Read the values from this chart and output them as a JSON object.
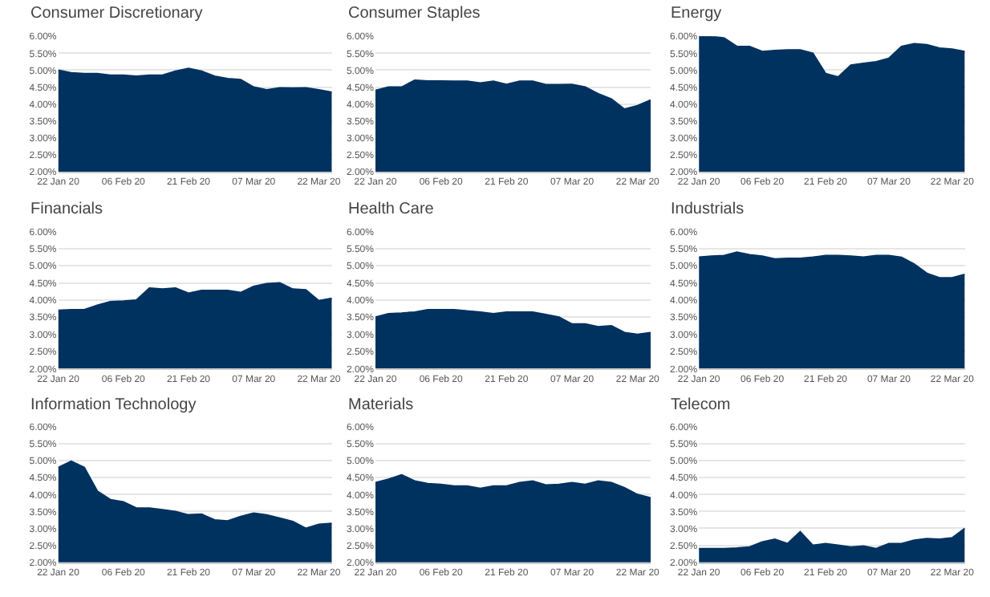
{
  "chart_data": [
    {
      "type": "area",
      "title": "Consumer Discretionary",
      "x": [
        "2020-01-22",
        "2020-01-25",
        "2020-01-28",
        "2020-01-31",
        "2020-02-03",
        "2020-02-06",
        "2020-02-09",
        "2020-02-12",
        "2020-02-15",
        "2020-02-18",
        "2020-02-21",
        "2020-02-24",
        "2020-02-27",
        "2020-03-01",
        "2020-03-04",
        "2020-03-07",
        "2020-03-10",
        "2020-03-13",
        "2020-03-16",
        "2020-03-19",
        "2020-03-22",
        "2020-03-25"
      ],
      "series": [
        {
          "color": "#003260",
          "values": [
            5.0,
            4.92,
            4.9,
            4.9,
            4.85,
            4.85,
            4.82,
            4.85,
            4.85,
            4.97,
            5.05,
            4.97,
            4.82,
            4.75,
            4.72,
            4.5,
            4.42,
            4.48,
            4.47,
            4.48,
            4.42,
            4.35
          ]
        }
      ],
      "xlim": [
        "2020-01-22",
        "2020-03-25"
      ],
      "xticks": [
        {
          "value": "2020-01-22",
          "label": "22 Jan 20"
        },
        {
          "value": "2020-02-06",
          "label": "06 Feb 20"
        },
        {
          "value": "2020-02-21",
          "label": "21 Feb 20"
        },
        {
          "value": "2020-03-07",
          "label": "07 Mar 20"
        },
        {
          "value": "2020-03-22",
          "label": "22 Mar 20"
        }
      ],
      "ylim": [
        2,
        6
      ],
      "yticks": [
        {
          "value": 2,
          "label": "2.00%"
        },
        {
          "value": 2.5,
          "label": "2.50%"
        },
        {
          "value": 3,
          "label": "3.00%"
        },
        {
          "value": 3.5,
          "label": "3.50%"
        },
        {
          "value": 4,
          "label": "4.00%"
        },
        {
          "value": 4.5,
          "label": "4.50%"
        },
        {
          "value": 5,
          "label": "5.00%"
        },
        {
          "value": 5.5,
          "label": "5.50%"
        },
        {
          "value": 6,
          "label": "6.00%"
        }
      ],
      "grid": "y"
    },
    {
      "type": "area",
      "title": "Consumer Staples",
      "x": [
        "2020-01-22",
        "2020-01-25",
        "2020-01-28",
        "2020-01-31",
        "2020-02-03",
        "2020-02-06",
        "2020-02-09",
        "2020-02-12",
        "2020-02-15",
        "2020-02-18",
        "2020-02-21",
        "2020-02-24",
        "2020-02-27",
        "2020-03-01",
        "2020-03-04",
        "2020-03-07",
        "2020-03-10",
        "2020-03-13",
        "2020-03-16",
        "2020-03-19",
        "2020-03-22",
        "2020-03-25"
      ],
      "series": [
        {
          "color": "#003260",
          "values": [
            4.4,
            4.5,
            4.5,
            4.7,
            4.68,
            4.68,
            4.67,
            4.67,
            4.62,
            4.67,
            4.58,
            4.67,
            4.67,
            4.57,
            4.57,
            4.58,
            4.5,
            4.3,
            4.15,
            3.85,
            3.95,
            4.12
          ]
        }
      ],
      "xlim": [
        "2020-01-22",
        "2020-03-25"
      ],
      "xticks": [
        {
          "value": "2020-01-22",
          "label": "22 Jan 20"
        },
        {
          "value": "2020-02-06",
          "label": "06 Feb 20"
        },
        {
          "value": "2020-02-21",
          "label": "21 Feb 20"
        },
        {
          "value": "2020-03-07",
          "label": "07 Mar 20"
        },
        {
          "value": "2020-03-22",
          "label": "22 Mar 20"
        }
      ],
      "ylim": [
        2,
        6
      ],
      "yticks": [
        {
          "value": 2,
          "label": "2.00%"
        },
        {
          "value": 2.5,
          "label": "2.50%"
        },
        {
          "value": 3,
          "label": "3.00%"
        },
        {
          "value": 3.5,
          "label": "3.50%"
        },
        {
          "value": 4,
          "label": "4.00%"
        },
        {
          "value": 4.5,
          "label": "4.50%"
        },
        {
          "value": 5,
          "label": "5.00%"
        },
        {
          "value": 5.5,
          "label": "5.50%"
        },
        {
          "value": 6,
          "label": "6.00%"
        }
      ],
      "grid": "y"
    },
    {
      "type": "area",
      "title": "Energy",
      "x": [
        "2020-01-22",
        "2020-01-25",
        "2020-01-28",
        "2020-01-31",
        "2020-02-03",
        "2020-02-06",
        "2020-02-09",
        "2020-02-12",
        "2020-02-15",
        "2020-02-18",
        "2020-02-21",
        "2020-02-24",
        "2020-02-27",
        "2020-03-01",
        "2020-03-04",
        "2020-03-07",
        "2020-03-10",
        "2020-03-13",
        "2020-03-16",
        "2020-03-19",
        "2020-03-22",
        "2020-03-25"
      ],
      "series": [
        {
          "color": "#003260",
          "values": [
            6.0,
            6.0,
            5.95,
            5.7,
            5.7,
            5.55,
            5.58,
            5.6,
            5.6,
            5.5,
            4.9,
            4.8,
            5.15,
            5.2,
            5.25,
            5.35,
            5.7,
            5.78,
            5.75,
            5.65,
            5.62,
            5.55
          ]
        }
      ],
      "xlim": [
        "2020-01-22",
        "2020-03-25"
      ],
      "xticks": [
        {
          "value": "2020-01-22",
          "label": "22 Jan 20"
        },
        {
          "value": "2020-02-06",
          "label": "06 Feb 20"
        },
        {
          "value": "2020-02-21",
          "label": "21 Feb 20"
        },
        {
          "value": "2020-03-07",
          "label": "07 Mar 20"
        },
        {
          "value": "2020-03-22",
          "label": "22 Mar 20"
        }
      ],
      "ylim": [
        2,
        6
      ],
      "yticks": [
        {
          "value": 2,
          "label": "2.00%"
        },
        {
          "value": 2.5,
          "label": "2.50%"
        },
        {
          "value": 3,
          "label": "3.00%"
        },
        {
          "value": 3.5,
          "label": "3.50%"
        },
        {
          "value": 4,
          "label": "4.00%"
        },
        {
          "value": 4.5,
          "label": "4.50%"
        },
        {
          "value": 5,
          "label": "5.00%"
        },
        {
          "value": 5.5,
          "label": "5.50%"
        },
        {
          "value": 6,
          "label": "6.00%"
        }
      ],
      "grid": "y"
    },
    {
      "type": "area",
      "title": "Financials",
      "x": [
        "2020-01-22",
        "2020-01-25",
        "2020-01-28",
        "2020-01-31",
        "2020-02-03",
        "2020-02-06",
        "2020-02-09",
        "2020-02-12",
        "2020-02-15",
        "2020-02-18",
        "2020-02-21",
        "2020-02-24",
        "2020-02-27",
        "2020-03-01",
        "2020-03-04",
        "2020-03-07",
        "2020-03-10",
        "2020-03-13",
        "2020-03-16",
        "2020-03-19",
        "2020-03-22",
        "2020-03-25"
      ],
      "series": [
        {
          "color": "#003260",
          "values": [
            3.7,
            3.72,
            3.72,
            3.85,
            3.95,
            3.97,
            4.0,
            4.35,
            4.32,
            4.35,
            4.2,
            4.28,
            4.28,
            4.28,
            4.22,
            4.4,
            4.48,
            4.5,
            4.32,
            4.3,
            3.98,
            4.05
          ]
        }
      ],
      "xlim": [
        "2020-01-22",
        "2020-03-25"
      ],
      "xticks": [
        {
          "value": "2020-01-22",
          "label": "22 Jan 20"
        },
        {
          "value": "2020-02-06",
          "label": "06 Feb 20"
        },
        {
          "value": "2020-02-21",
          "label": "21 Feb 20"
        },
        {
          "value": "2020-03-07",
          "label": "07 Mar 20"
        },
        {
          "value": "2020-03-22",
          "label": "22 Mar 20"
        }
      ],
      "ylim": [
        2,
        6
      ],
      "yticks": [
        {
          "value": 2,
          "label": "2.00%"
        },
        {
          "value": 2.5,
          "label": "2.50%"
        },
        {
          "value": 3,
          "label": "3.00%"
        },
        {
          "value": 3.5,
          "label": "3.50%"
        },
        {
          "value": 4,
          "label": "4.00%"
        },
        {
          "value": 4.5,
          "label": "4.50%"
        },
        {
          "value": 5,
          "label": "5.00%"
        },
        {
          "value": 5.5,
          "label": "5.50%"
        },
        {
          "value": 6,
          "label": "6.00%"
        }
      ],
      "grid": "y"
    },
    {
      "type": "area",
      "title": "Health Care",
      "x": [
        "2020-01-22",
        "2020-01-25",
        "2020-01-28",
        "2020-01-31",
        "2020-02-03",
        "2020-02-06",
        "2020-02-09",
        "2020-02-12",
        "2020-02-15",
        "2020-02-18",
        "2020-02-21",
        "2020-02-24",
        "2020-02-27",
        "2020-03-01",
        "2020-03-04",
        "2020-03-07",
        "2020-03-10",
        "2020-03-13",
        "2020-03-16",
        "2020-03-19",
        "2020-03-22",
        "2020-03-25"
      ],
      "series": [
        {
          "color": "#003260",
          "values": [
            3.5,
            3.6,
            3.62,
            3.65,
            3.72,
            3.72,
            3.72,
            3.68,
            3.65,
            3.6,
            3.65,
            3.65,
            3.65,
            3.58,
            3.5,
            3.3,
            3.3,
            3.22,
            3.25,
            3.05,
            3.0,
            3.05
          ]
        }
      ],
      "xlim": [
        "2020-01-22",
        "2020-03-25"
      ],
      "xticks": [
        {
          "value": "2020-01-22",
          "label": "22 Jan 20"
        },
        {
          "value": "2020-02-06",
          "label": "06 Feb 20"
        },
        {
          "value": "2020-02-21",
          "label": "21 Feb 20"
        },
        {
          "value": "2020-03-07",
          "label": "07 Mar 20"
        },
        {
          "value": "2020-03-22",
          "label": "22 Mar 20"
        }
      ],
      "ylim": [
        2,
        6
      ],
      "yticks": [
        {
          "value": 2,
          "label": "2.00%"
        },
        {
          "value": 2.5,
          "label": "2.50%"
        },
        {
          "value": 3,
          "label": "3.00%"
        },
        {
          "value": 3.5,
          "label": "3.50%"
        },
        {
          "value": 4,
          "label": "4.00%"
        },
        {
          "value": 4.5,
          "label": "4.50%"
        },
        {
          "value": 5,
          "label": "5.00%"
        },
        {
          "value": 5.5,
          "label": "5.50%"
        },
        {
          "value": 6,
          "label": "6.00%"
        }
      ],
      "grid": "y"
    },
    {
      "type": "area",
      "title": "Industrials",
      "x": [
        "2020-01-22",
        "2020-01-25",
        "2020-01-28",
        "2020-01-31",
        "2020-02-03",
        "2020-02-06",
        "2020-02-09",
        "2020-02-12",
        "2020-02-15",
        "2020-02-18",
        "2020-02-21",
        "2020-02-24",
        "2020-02-27",
        "2020-03-01",
        "2020-03-04",
        "2020-03-07",
        "2020-03-10",
        "2020-03-13",
        "2020-03-16",
        "2020-03-19",
        "2020-03-22",
        "2020-03-25"
      ],
      "series": [
        {
          "color": "#003260",
          "values": [
            5.25,
            5.28,
            5.3,
            5.4,
            5.32,
            5.28,
            5.2,
            5.22,
            5.22,
            5.25,
            5.3,
            5.3,
            5.28,
            5.25,
            5.3,
            5.3,
            5.25,
            5.05,
            4.78,
            4.65,
            4.65,
            4.75
          ]
        }
      ],
      "xlim": [
        "2020-01-22",
        "2020-03-25"
      ],
      "xticks": [
        {
          "value": "2020-01-22",
          "label": "22 Jan 20"
        },
        {
          "value": "2020-02-06",
          "label": "06 Feb 20"
        },
        {
          "value": "2020-02-21",
          "label": "21 Feb 20"
        },
        {
          "value": "2020-03-07",
          "label": "07 Mar 20"
        },
        {
          "value": "2020-03-22",
          "label": "22 Mar 20"
        }
      ],
      "ylim": [
        2,
        6
      ],
      "yticks": [
        {
          "value": 2,
          "label": "2.00%"
        },
        {
          "value": 2.5,
          "label": "2.50%"
        },
        {
          "value": 3,
          "label": "3.00%"
        },
        {
          "value": 3.5,
          "label": "3.50%"
        },
        {
          "value": 4,
          "label": "4.00%"
        },
        {
          "value": 4.5,
          "label": "4.50%"
        },
        {
          "value": 5,
          "label": "5.00%"
        },
        {
          "value": 5.5,
          "label": "5.50%"
        },
        {
          "value": 6,
          "label": "6.00%"
        }
      ],
      "grid": "y"
    },
    {
      "type": "area",
      "title": "Information Technology",
      "x": [
        "2020-01-22",
        "2020-01-25",
        "2020-01-28",
        "2020-01-31",
        "2020-02-03",
        "2020-02-06",
        "2020-02-09",
        "2020-02-12",
        "2020-02-15",
        "2020-02-18",
        "2020-02-21",
        "2020-02-24",
        "2020-02-27",
        "2020-03-01",
        "2020-03-04",
        "2020-03-07",
        "2020-03-10",
        "2020-03-13",
        "2020-03-16",
        "2020-03-19",
        "2020-03-22",
        "2020-03-25"
      ],
      "series": [
        {
          "color": "#003260",
          "values": [
            4.8,
            4.98,
            4.8,
            4.1,
            3.85,
            3.78,
            3.6,
            3.6,
            3.55,
            3.5,
            3.4,
            3.42,
            3.25,
            3.22,
            3.35,
            3.45,
            3.4,
            3.3,
            3.2,
            3.0,
            3.12,
            3.15
          ]
        }
      ],
      "xlim": [
        "2020-01-22",
        "2020-03-25"
      ],
      "xticks": [
        {
          "value": "2020-01-22",
          "label": "22 Jan 20"
        },
        {
          "value": "2020-02-06",
          "label": "06 Feb 20"
        },
        {
          "value": "2020-02-21",
          "label": "21 Feb 20"
        },
        {
          "value": "2020-03-07",
          "label": "07 Mar 20"
        },
        {
          "value": "2020-03-22",
          "label": "22 Mar 20"
        }
      ],
      "ylim": [
        2,
        6
      ],
      "yticks": [
        {
          "value": 2,
          "label": "2.00%"
        },
        {
          "value": 2.5,
          "label": "2.50%"
        },
        {
          "value": 3,
          "label": "3.00%"
        },
        {
          "value": 3.5,
          "label": "3.50%"
        },
        {
          "value": 4,
          "label": "4.00%"
        },
        {
          "value": 4.5,
          "label": "4.50%"
        },
        {
          "value": 5,
          "label": "5.00%"
        },
        {
          "value": 5.5,
          "label": "5.50%"
        },
        {
          "value": 6,
          "label": "6.00%"
        }
      ],
      "grid": "y"
    },
    {
      "type": "area",
      "title": "Materials",
      "x": [
        "2020-01-22",
        "2020-01-25",
        "2020-01-28",
        "2020-01-31",
        "2020-02-03",
        "2020-02-06",
        "2020-02-09",
        "2020-02-12",
        "2020-02-15",
        "2020-02-18",
        "2020-02-21",
        "2020-02-24",
        "2020-02-27",
        "2020-03-01",
        "2020-03-04",
        "2020-03-07",
        "2020-03-10",
        "2020-03-13",
        "2020-03-16",
        "2020-03-19",
        "2020-03-22",
        "2020-03-25"
      ],
      "series": [
        {
          "color": "#003260",
          "values": [
            4.35,
            4.45,
            4.58,
            4.4,
            4.32,
            4.3,
            4.25,
            4.25,
            4.18,
            4.25,
            4.25,
            4.35,
            4.4,
            4.28,
            4.3,
            4.35,
            4.3,
            4.4,
            4.35,
            4.2,
            4.0,
            3.9
          ]
        }
      ],
      "xlim": [
        "2020-01-22",
        "2020-03-25"
      ],
      "xticks": [
        {
          "value": "2020-01-22",
          "label": "22 Jan 20"
        },
        {
          "value": "2020-02-06",
          "label": "06 Feb 20"
        },
        {
          "value": "2020-02-21",
          "label": "21 Feb 20"
        },
        {
          "value": "2020-03-07",
          "label": "07 Mar 20"
        },
        {
          "value": "2020-03-22",
          "label": "22 Mar 20"
        }
      ],
      "ylim": [
        2,
        6
      ],
      "yticks": [
        {
          "value": 2,
          "label": "2.00%"
        },
        {
          "value": 2.5,
          "label": "2.50%"
        },
        {
          "value": 3,
          "label": "3.00%"
        },
        {
          "value": 3.5,
          "label": "3.50%"
        },
        {
          "value": 4,
          "label": "4.00%"
        },
        {
          "value": 4.5,
          "label": "4.50%"
        },
        {
          "value": 5,
          "label": "5.00%"
        },
        {
          "value": 5.5,
          "label": "5.50%"
        },
        {
          "value": 6,
          "label": "6.00%"
        }
      ],
      "grid": "y"
    },
    {
      "type": "area",
      "title": "Telecom",
      "x": [
        "2020-01-22",
        "2020-01-25",
        "2020-01-28",
        "2020-01-31",
        "2020-02-03",
        "2020-02-06",
        "2020-02-09",
        "2020-02-12",
        "2020-02-15",
        "2020-02-18",
        "2020-02-21",
        "2020-02-24",
        "2020-02-27",
        "2020-03-01",
        "2020-03-04",
        "2020-03-07",
        "2020-03-10",
        "2020-03-13",
        "2020-03-16",
        "2020-03-19",
        "2020-03-22",
        "2020-03-25"
      ],
      "series": [
        {
          "color": "#003260",
          "values": [
            2.4,
            2.4,
            2.4,
            2.42,
            2.45,
            2.6,
            2.68,
            2.55,
            2.9,
            2.5,
            2.55,
            2.5,
            2.45,
            2.48,
            2.4,
            2.55,
            2.55,
            2.65,
            2.7,
            2.68,
            2.72,
            3.0
          ]
        }
      ],
      "xlim": [
        "2020-01-22",
        "2020-03-25"
      ],
      "xticks": [
        {
          "value": "2020-01-22",
          "label": "22 Jan 20"
        },
        {
          "value": "2020-02-06",
          "label": "06 Feb 20"
        },
        {
          "value": "2020-02-21",
          "label": "21 Feb 20"
        },
        {
          "value": "2020-03-07",
          "label": "07 Mar 20"
        },
        {
          "value": "2020-03-22",
          "label": "22 Mar 20"
        }
      ],
      "ylim": [
        2,
        6
      ],
      "yticks": [
        {
          "value": 2,
          "label": "2.00%"
        },
        {
          "value": 2.5,
          "label": "2.50%"
        },
        {
          "value": 3,
          "label": "3.00%"
        },
        {
          "value": 3.5,
          "label": "3.50%"
        },
        {
          "value": 4,
          "label": "4.00%"
        },
        {
          "value": 4.5,
          "label": "4.50%"
        },
        {
          "value": 5,
          "label": "5.00%"
        },
        {
          "value": 5.5,
          "label": "5.50%"
        },
        {
          "value": 6,
          "label": "6.00%"
        }
      ],
      "grid": "y"
    }
  ]
}
